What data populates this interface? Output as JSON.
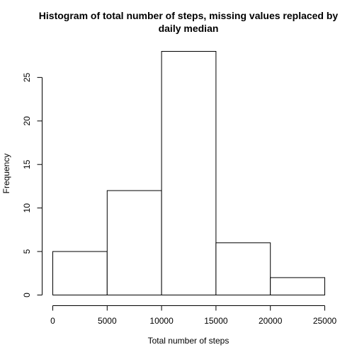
{
  "chart_data": {
    "type": "bar",
    "title_line1": "Histogram of total number of steps, missing values replaced by",
    "title_line2": "daily median",
    "xlabel": "Total number of steps",
    "ylabel": "Frequency",
    "bins": [
      {
        "from": 0,
        "to": 5000,
        "count": 5
      },
      {
        "from": 5000,
        "to": 10000,
        "count": 12
      },
      {
        "from": 10000,
        "to": 15000,
        "count": 28
      },
      {
        "from": 15000,
        "to": 20000,
        "count": 6
      },
      {
        "from": 20000,
        "to": 25000,
        "count": 2
      }
    ],
    "xlim": [
      0,
      25000
    ],
    "ylim": [
      0,
      28
    ],
    "x_ticks": [
      0,
      5000,
      10000,
      15000,
      20000,
      25000
    ],
    "y_ticks": [
      0,
      5,
      10,
      15,
      20,
      25
    ],
    "grid": false,
    "bar_fill": "#ffffff",
    "bar_stroke": "#000000"
  }
}
